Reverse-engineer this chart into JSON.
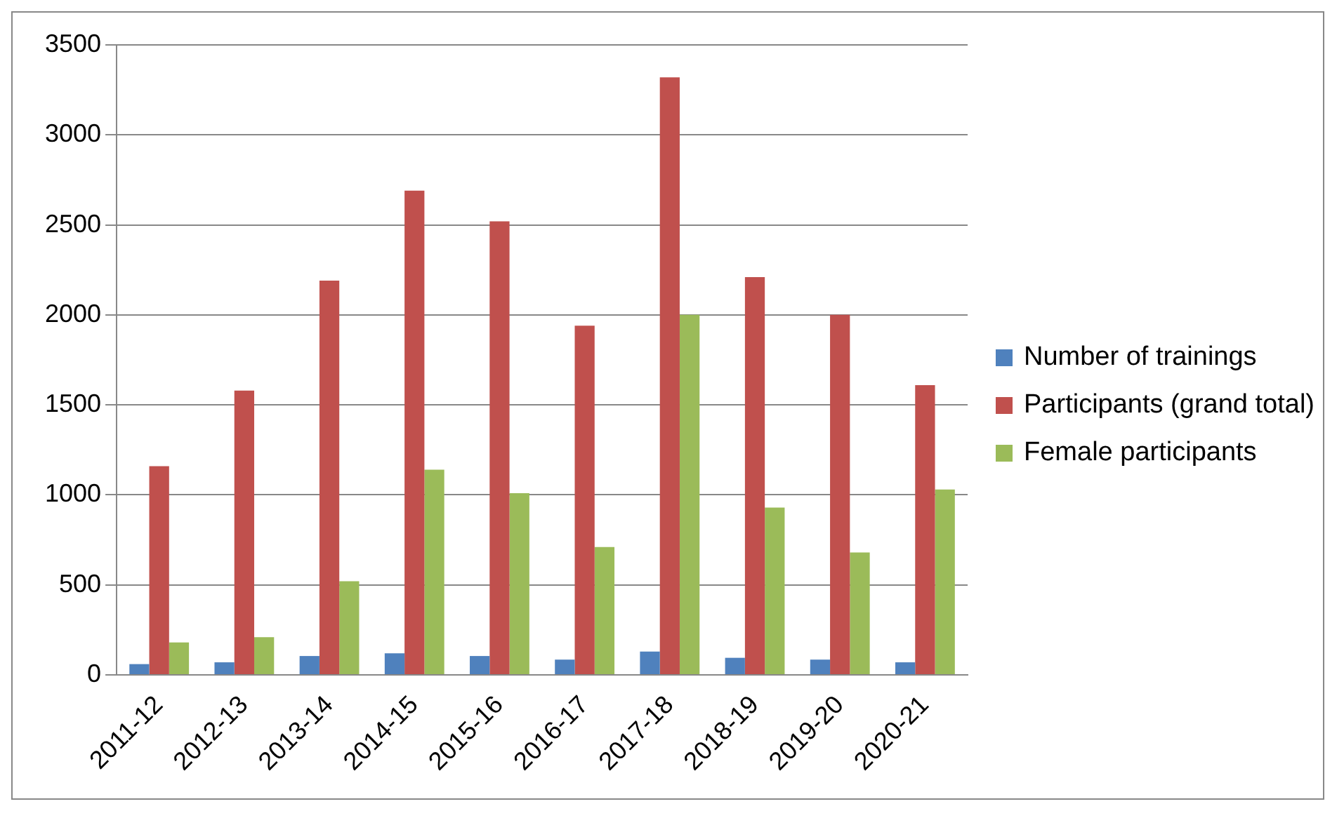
{
  "chart_data": {
    "type": "bar",
    "categories": [
      "2011-12",
      "2012-13",
      "2013-14",
      "2014-15",
      "2015-16",
      "2016-17",
      "2017-18",
      "2018-19",
      "2019-20",
      "2020-21"
    ],
    "series": [
      {
        "name": "Number of trainings",
        "color": "#4f81bd",
        "values": [
          60,
          70,
          105,
          120,
          105,
          85,
          130,
          95,
          85,
          70
        ]
      },
      {
        "name": "Participants (grand total)",
        "color": "#c0504d",
        "values": [
          1160,
          1580,
          2190,
          2690,
          2520,
          1940,
          3320,
          2210,
          2000,
          1610
        ]
      },
      {
        "name": "Female participants",
        "color": "#9bbb59",
        "values": [
          180,
          210,
          520,
          1140,
          1010,
          710,
          2000,
          930,
          680,
          1030
        ]
      }
    ],
    "ylim": [
      0,
      3500
    ],
    "yticks": [
      0,
      500,
      1000,
      1500,
      2000,
      2500,
      3000,
      3500
    ],
    "grid": "y",
    "legend": "right"
  }
}
